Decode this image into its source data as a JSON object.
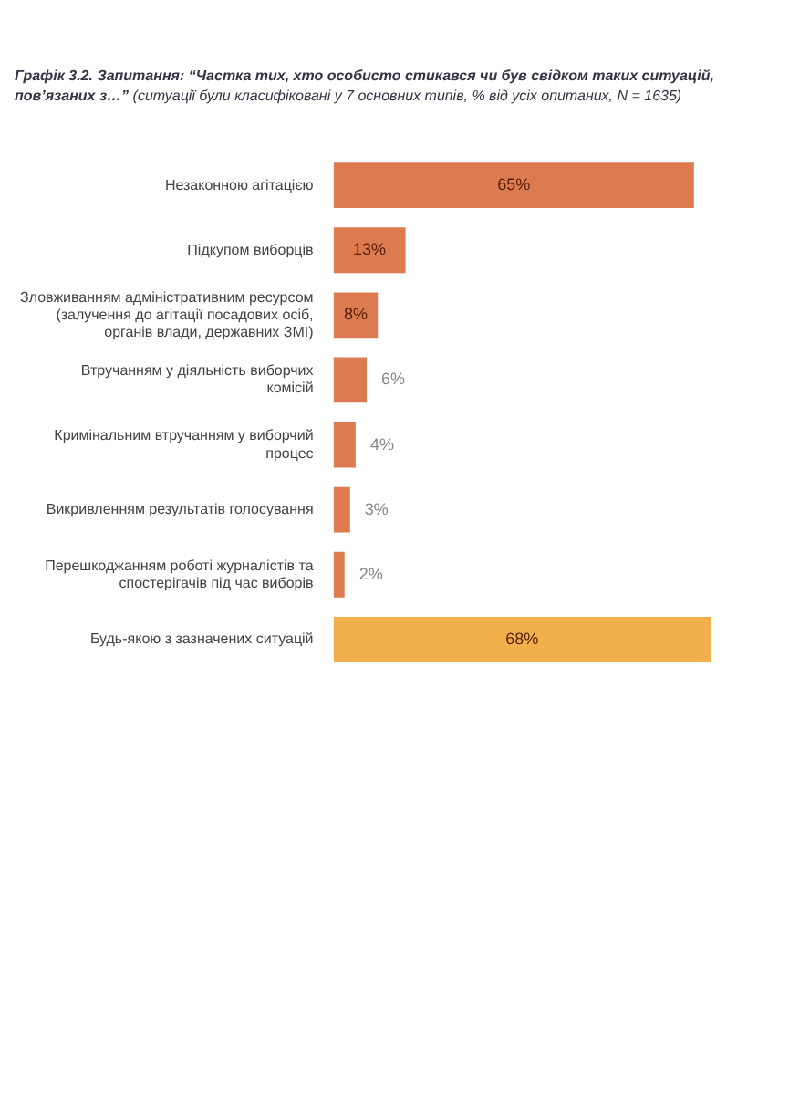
{
  "chart_data": {
    "type": "bar",
    "orientation": "horizontal",
    "title": "Графік 3.2. Запитання: “Частка тих, хто особисто стикався чи був свідком таких ситуацій, пов’язаних з…”",
    "subtitle": "(ситуації були класифіковані у 7 основних типів, % від усіх опитаних, N = 1635)",
    "categories": [
      "Незаконною агітацією",
      "Підкупом виборців",
      "Зловживанням адміністративним ресурсом (залучення до агітації посадових осіб, органів влади, державних ЗМІ)",
      "Втручанням у діяльність виборчих комісій",
      "Кримінальним втручанням у виборчий процес",
      "Викривленням результатів голосування",
      "Перешкоджанням роботі журналістів та спостерігачів під час виборів",
      "Будь-якою з зазначених ситуацій"
    ],
    "values": [
      65,
      13,
      8,
      6,
      4,
      3,
      2,
      68
    ],
    "colors": [
      "#dc7a50",
      "#dc7a50",
      "#dc7a50",
      "#dc7a50",
      "#dc7a50",
      "#dc7a50",
      "#dc7a50",
      "#f2b04c"
    ],
    "value_labels": [
      "65%",
      "13%",
      "8%",
      "6%",
      "4%",
      "3%",
      "2%",
      "68%"
    ]
  }
}
